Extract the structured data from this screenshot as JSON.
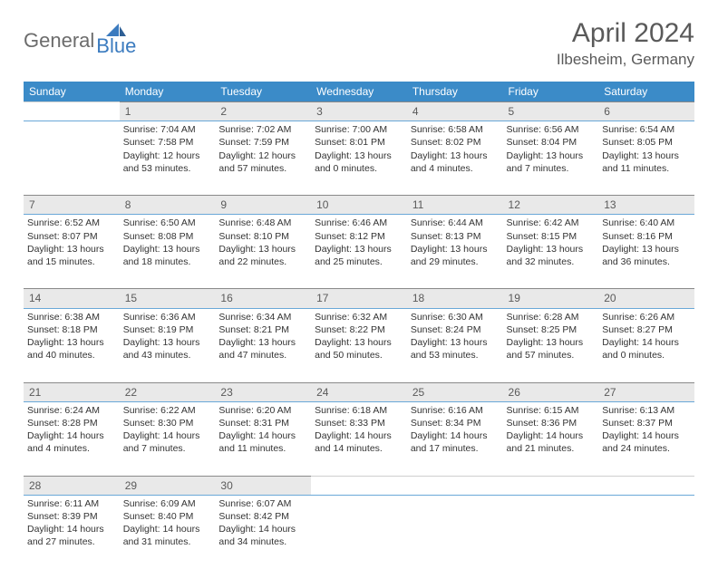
{
  "brand": {
    "general": "General",
    "blue": "Blue"
  },
  "title": "April 2024",
  "location": "Ilbesheim, Germany",
  "colors": {
    "header_bg": "#3b8bc8",
    "header_text": "#ffffff",
    "daynum_bg": "#e9e9e9",
    "border": "#6aa8d8",
    "text": "#333333",
    "title_text": "#5a5a5a",
    "logo_gray": "#6c6c6c",
    "logo_blue": "#3b7bbf"
  },
  "typography": {
    "title_fontsize": 30,
    "location_fontsize": 17,
    "dayhead_fontsize": 12,
    "cell_fontsize": 10.5
  },
  "day_headers": [
    "Sunday",
    "Monday",
    "Tuesday",
    "Wednesday",
    "Thursday",
    "Friday",
    "Saturday"
  ],
  "weeks": [
    [
      null,
      {
        "n": "1",
        "sunrise": "7:04 AM",
        "sunset": "7:58 PM",
        "daylight": "12 hours and 53 minutes."
      },
      {
        "n": "2",
        "sunrise": "7:02 AM",
        "sunset": "7:59 PM",
        "daylight": "12 hours and 57 minutes."
      },
      {
        "n": "3",
        "sunrise": "7:00 AM",
        "sunset": "8:01 PM",
        "daylight": "13 hours and 0 minutes."
      },
      {
        "n": "4",
        "sunrise": "6:58 AM",
        "sunset": "8:02 PM",
        "daylight": "13 hours and 4 minutes."
      },
      {
        "n": "5",
        "sunrise": "6:56 AM",
        "sunset": "8:04 PM",
        "daylight": "13 hours and 7 minutes."
      },
      {
        "n": "6",
        "sunrise": "6:54 AM",
        "sunset": "8:05 PM",
        "daylight": "13 hours and 11 minutes."
      }
    ],
    [
      {
        "n": "7",
        "sunrise": "6:52 AM",
        "sunset": "8:07 PM",
        "daylight": "13 hours and 15 minutes."
      },
      {
        "n": "8",
        "sunrise": "6:50 AM",
        "sunset": "8:08 PM",
        "daylight": "13 hours and 18 minutes."
      },
      {
        "n": "9",
        "sunrise": "6:48 AM",
        "sunset": "8:10 PM",
        "daylight": "13 hours and 22 minutes."
      },
      {
        "n": "10",
        "sunrise": "6:46 AM",
        "sunset": "8:12 PM",
        "daylight": "13 hours and 25 minutes."
      },
      {
        "n": "11",
        "sunrise": "6:44 AM",
        "sunset": "8:13 PM",
        "daylight": "13 hours and 29 minutes."
      },
      {
        "n": "12",
        "sunrise": "6:42 AM",
        "sunset": "8:15 PM",
        "daylight": "13 hours and 32 minutes."
      },
      {
        "n": "13",
        "sunrise": "6:40 AM",
        "sunset": "8:16 PM",
        "daylight": "13 hours and 36 minutes."
      }
    ],
    [
      {
        "n": "14",
        "sunrise": "6:38 AM",
        "sunset": "8:18 PM",
        "daylight": "13 hours and 40 minutes."
      },
      {
        "n": "15",
        "sunrise": "6:36 AM",
        "sunset": "8:19 PM",
        "daylight": "13 hours and 43 minutes."
      },
      {
        "n": "16",
        "sunrise": "6:34 AM",
        "sunset": "8:21 PM",
        "daylight": "13 hours and 47 minutes."
      },
      {
        "n": "17",
        "sunrise": "6:32 AM",
        "sunset": "8:22 PM",
        "daylight": "13 hours and 50 minutes."
      },
      {
        "n": "18",
        "sunrise": "6:30 AM",
        "sunset": "8:24 PM",
        "daylight": "13 hours and 53 minutes."
      },
      {
        "n": "19",
        "sunrise": "6:28 AM",
        "sunset": "8:25 PM",
        "daylight": "13 hours and 57 minutes."
      },
      {
        "n": "20",
        "sunrise": "6:26 AM",
        "sunset": "8:27 PM",
        "daylight": "14 hours and 0 minutes."
      }
    ],
    [
      {
        "n": "21",
        "sunrise": "6:24 AM",
        "sunset": "8:28 PM",
        "daylight": "14 hours and 4 minutes."
      },
      {
        "n": "22",
        "sunrise": "6:22 AM",
        "sunset": "8:30 PM",
        "daylight": "14 hours and 7 minutes."
      },
      {
        "n": "23",
        "sunrise": "6:20 AM",
        "sunset": "8:31 PM",
        "daylight": "14 hours and 11 minutes."
      },
      {
        "n": "24",
        "sunrise": "6:18 AM",
        "sunset": "8:33 PM",
        "daylight": "14 hours and 14 minutes."
      },
      {
        "n": "25",
        "sunrise": "6:16 AM",
        "sunset": "8:34 PM",
        "daylight": "14 hours and 17 minutes."
      },
      {
        "n": "26",
        "sunrise": "6:15 AM",
        "sunset": "8:36 PM",
        "daylight": "14 hours and 21 minutes."
      },
      {
        "n": "27",
        "sunrise": "6:13 AM",
        "sunset": "8:37 PM",
        "daylight": "14 hours and 24 minutes."
      }
    ],
    [
      {
        "n": "28",
        "sunrise": "6:11 AM",
        "sunset": "8:39 PM",
        "daylight": "14 hours and 27 minutes."
      },
      {
        "n": "29",
        "sunrise": "6:09 AM",
        "sunset": "8:40 PM",
        "daylight": "14 hours and 31 minutes."
      },
      {
        "n": "30",
        "sunrise": "6:07 AM",
        "sunset": "8:42 PM",
        "daylight": "14 hours and 34 minutes."
      },
      null,
      null,
      null,
      null
    ]
  ],
  "labels": {
    "sunrise": "Sunrise:",
    "sunset": "Sunset:",
    "daylight": "Daylight:"
  }
}
